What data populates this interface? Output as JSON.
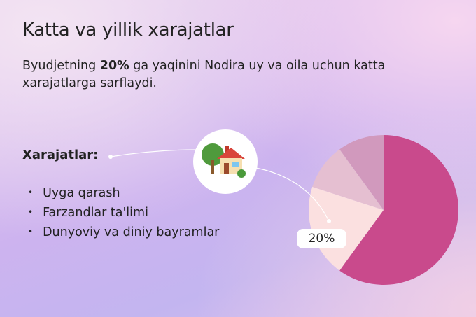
{
  "title": "Katta va yillik xarajatlar",
  "subtitle": {
    "before": "Byudjetning ",
    "bold": "20%",
    "after": " ga yaqinini Nodira uy va oila uchun katta xarajatlarga sarflaydi."
  },
  "expenses_label": "Xarajatlar:",
  "expenses": [
    "Uyga qarash",
    "Farzandlar ta'limi",
    "Dunyoviy va diniy bayramlar"
  ],
  "icon": "house-with-garden-icon",
  "badge": "20%",
  "chart_data": {
    "type": "pie",
    "values": [
      60,
      20,
      10,
      10
    ],
    "colors": [
      "#c94a8c",
      "#fbe0e0",
      "#e5bfd1",
      "#d199bd"
    ],
    "highlighted_label": "20%"
  }
}
